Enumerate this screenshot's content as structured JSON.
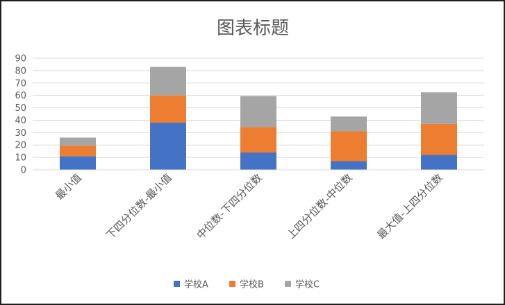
{
  "chart_data": {
    "type": "bar",
    "stacked": true,
    "title": "图表标题",
    "xlabel": "",
    "ylabel": "",
    "ylim": [
      0,
      90
    ],
    "yticks": [
      0,
      10,
      20,
      30,
      40,
      50,
      60,
      70,
      80,
      90
    ],
    "grid": true,
    "legend_position": "bottom",
    "categories": [
      "最小值",
      "下四分位数-最小值",
      "中位数-下四分位数",
      "上四分位数-中位数",
      "最大值-上四分位数"
    ],
    "series": [
      {
        "name": "学校A",
        "color": "#4472C4",
        "values": [
          11,
          38,
          14,
          7,
          12
        ]
      },
      {
        "name": "学校B",
        "color": "#ED7D31",
        "values": [
          8.5,
          22,
          20.5,
          24,
          25
        ]
      },
      {
        "name": "学校C",
        "color": "#A5A5A5",
        "values": [
          6.5,
          23,
          25,
          12,
          25.5
        ]
      }
    ]
  }
}
